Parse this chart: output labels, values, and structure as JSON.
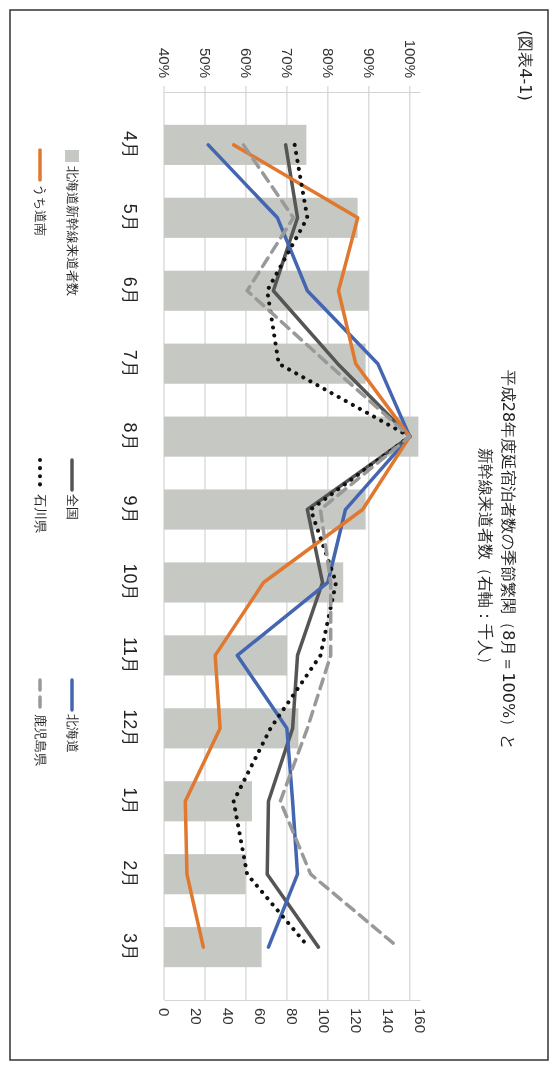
{
  "chart_data": {
    "type": "line",
    "orientation": "horizontal",
    "title": "平成28年度延宿泊者数の季節繁閑（8月＝100%）と",
    "subtitle": "新幹線来道者数（右軸：千人）",
    "annotations": [
      "(図表4-1)"
    ],
    "categories": [
      "4月",
      "5月",
      "6月",
      "7月",
      "8月",
      "9月",
      "10月",
      "11月",
      "12月",
      "1月",
      "2月",
      "3月"
    ],
    "x2lim": [
      40,
      102.5
    ],
    "x2ticks": [
      {
        "value": 40,
        "label": "40%"
      },
      {
        "value": 50,
        "label": "50%"
      },
      {
        "value": 60,
        "label": "60%"
      },
      {
        "value": 70,
        "label": "70%"
      },
      {
        "value": 80,
        "label": "80%"
      },
      {
        "value": 90,
        "label": "90%"
      },
      {
        "value": 100,
        "label": "100%"
      }
    ],
    "xlim": [
      0,
      160
    ],
    "xticks": [
      0,
      20,
      40,
      60,
      80,
      100,
      120,
      140,
      160
    ],
    "grid": "x2",
    "legend": "left",
    "marker": "none",
    "series": [
      {
        "name": "北海道新幹線来道者数",
        "type": "bar",
        "color": "#c6c8c3",
        "values": [
          89,
          121,
          128,
          126,
          159,
          126,
          112,
          77,
          84,
          55,
          51,
          61
        ]
      },
      {
        "name": "全国",
        "axis": "x2",
        "color": "#555555",
        "line_style": "solid",
        "values": [
          69.7,
          72.6,
          66.7,
          82.4,
          100,
          75,
          78.7,
          72.6,
          71.4,
          65.5,
          65.2,
          77.7
        ]
      },
      {
        "name": "北海道",
        "axis": "x2",
        "color": "#4466b0",
        "line_style": "solid",
        "values": [
          50.8,
          67.7,
          75,
          92.2,
          100,
          84.3,
          80,
          57.9,
          70,
          71.4,
          72.6,
          65.5
        ]
      },
      {
        "name": "うち道南",
        "axis": "x2",
        "color": "#e0782f",
        "line_style": "solid",
        "values": [
          57,
          87.3,
          82.6,
          86.8,
          100,
          88.5,
          64.3,
          52.5,
          53.7,
          45.2,
          45.6,
          49.6
        ]
      },
      {
        "name": "石川県",
        "axis": "x2",
        "color": "#111111",
        "line_style": "dotted",
        "values": [
          71.9,
          75,
          65.2,
          68,
          100,
          75.8,
          82,
          78.2,
          66,
          57,
          60.3,
          75.3
        ]
      },
      {
        "name": "鹿児島県",
        "axis": "x2",
        "color": "#999999",
        "line_style": "dashed",
        "values": [
          59.4,
          71.6,
          60.3,
          80,
          100,
          78.2,
          80.7,
          80.7,
          75,
          68.4,
          75.8,
          97.1
        ]
      }
    ]
  }
}
